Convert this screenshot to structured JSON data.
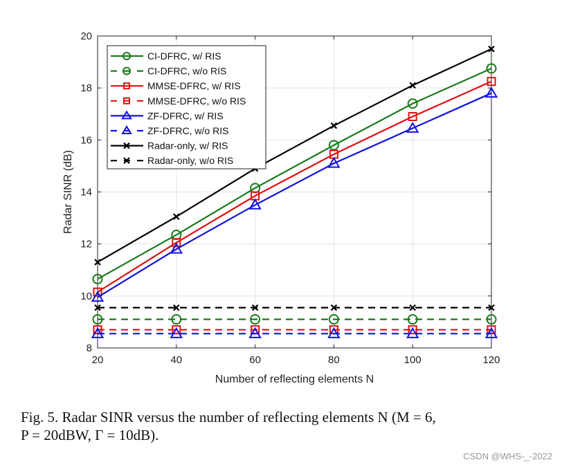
{
  "chart_data": {
    "type": "line",
    "xlabel": "Number of reflecting elements  N",
    "ylabel": "Radar SINR (dB)",
    "xlim": [
      20,
      120
    ],
    "ylim": [
      8,
      20
    ],
    "xticks": [
      20,
      40,
      60,
      80,
      100,
      120
    ],
    "yticks": [
      8,
      10,
      12,
      14,
      16,
      18,
      20
    ],
    "grid": true,
    "legend_position": "top-left",
    "x": [
      20,
      40,
      60,
      80,
      100,
      120
    ],
    "series": [
      {
        "name": "CI-DFRC, w/ RIS",
        "color": "#1a7a1a",
        "dash": false,
        "marker": "circle",
        "values": [
          10.65,
          12.35,
          14.15,
          15.8,
          17.4,
          18.75
        ]
      },
      {
        "name": "CI-DFRC, w/o RIS",
        "color": "#1a7a1a",
        "dash": true,
        "marker": "circle",
        "values": [
          9.1,
          9.1,
          9.1,
          9.1,
          9.1,
          9.1
        ]
      },
      {
        "name": "MMSE-DFRC, w/ RIS",
        "color": "#dd1111",
        "dash": false,
        "marker": "square",
        "values": [
          10.15,
          12.05,
          13.85,
          15.45,
          16.9,
          18.25
        ]
      },
      {
        "name": "MMSE-DFRC, w/o RIS",
        "color": "#dd1111",
        "dash": true,
        "marker": "square",
        "values": [
          8.7,
          8.7,
          8.7,
          8.7,
          8.7,
          8.7
        ]
      },
      {
        "name": "ZF-DFRC, w/ RIS",
        "color": "#1111dd",
        "dash": false,
        "marker": "triangle",
        "values": [
          9.95,
          11.8,
          13.5,
          15.1,
          16.45,
          17.8
        ]
      },
      {
        "name": "ZF-DFRC, w/o RIS",
        "color": "#1111dd",
        "dash": true,
        "marker": "triangle",
        "values": [
          8.55,
          8.55,
          8.55,
          8.55,
          8.55,
          8.55
        ]
      },
      {
        "name": "Radar-only, w/ RIS",
        "color": "#000000",
        "dash": false,
        "marker": "x",
        "values": [
          11.3,
          13.05,
          14.9,
          16.55,
          18.1,
          19.5
        ]
      },
      {
        "name": "Radar-only, w/o RIS",
        "color": "#000000",
        "dash": true,
        "marker": "x",
        "values": [
          9.55,
          9.55,
          9.55,
          9.55,
          9.55,
          9.55
        ]
      }
    ]
  },
  "caption": {
    "line1": "Fig. 5.    Radar SINR versus the number of reflecting elements N (M = 6,",
    "line2": "P = 20dBW, Γ = 10dB)."
  },
  "watermark": "CSDN @WHS-_-2022"
}
